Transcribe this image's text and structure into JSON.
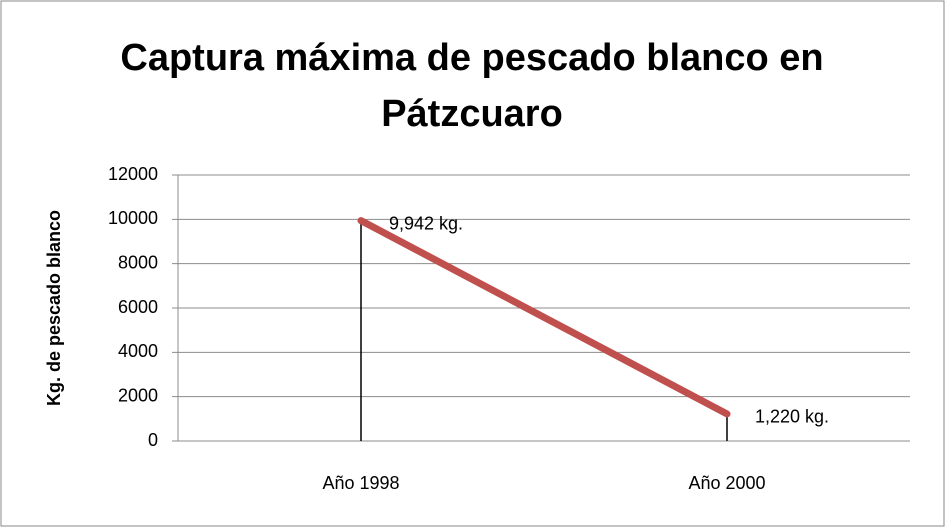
{
  "chart_data": {
    "type": "line",
    "title": "Captura máxima de pescado blanco en Pátzcuaro",
    "y_label": "Kg. de pescado blanco",
    "categories": [
      "Año 1998",
      "Año 2000"
    ],
    "values": [
      9942,
      1220
    ],
    "value_labels": [
      "9,942 kg.",
      "1,220 kg."
    ],
    "color": "#c0504d",
    "drop_lines": true,
    "ylim": [
      0,
      12000
    ],
    "yticks": [
      0,
      2000,
      4000,
      6000,
      8000,
      10000,
      12000
    ],
    "grid": true
  }
}
